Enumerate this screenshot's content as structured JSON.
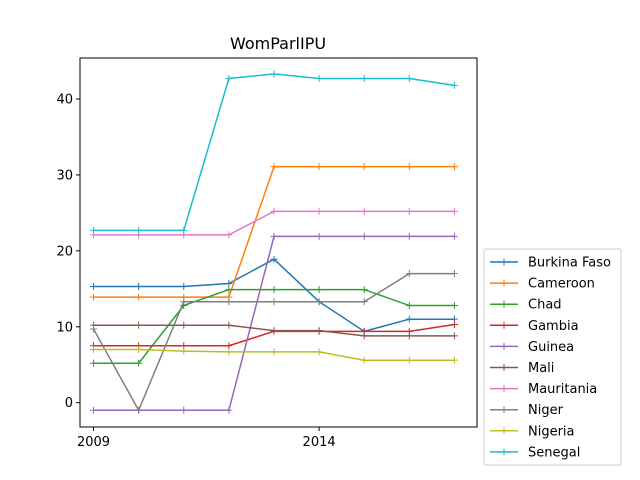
{
  "chart_data": {
    "type": "line",
    "title": "WomParlIPU",
    "xlabel": "",
    "ylabel": "",
    "x": [
      2009,
      2010,
      2011,
      2012,
      2013,
      2014,
      2015,
      2016,
      2017
    ],
    "xticks": [
      2009,
      2014
    ],
    "yticks": [
      0,
      10,
      20,
      30,
      40
    ],
    "ylim": [
      -3.2,
      45.4
    ],
    "xlim": [
      2008.7,
      2017.5
    ],
    "grid": false,
    "legend_position": "lower right, outside plot",
    "series": [
      {
        "name": "Burkina Faso",
        "color": "#1f77b4",
        "values": [
          15.3,
          15.3,
          15.3,
          15.7,
          18.9,
          13.3,
          9.4,
          11.0,
          11.0
        ]
      },
      {
        "name": "Cameroon",
        "color": "#ff7f0e",
        "values": [
          13.9,
          13.9,
          13.9,
          13.9,
          31.1,
          31.1,
          31.1,
          31.1,
          31.1
        ]
      },
      {
        "name": "Chad",
        "color": "#2ca02c",
        "values": [
          5.2,
          5.2,
          12.8,
          14.9,
          14.9,
          14.9,
          14.9,
          12.8,
          12.8
        ]
      },
      {
        "name": "Gambia",
        "color": "#d62728",
        "values": [
          7.5,
          7.5,
          7.5,
          7.5,
          9.4,
          9.4,
          9.4,
          9.4,
          10.3
        ]
      },
      {
        "name": "Guinea",
        "color": "#9467bd",
        "values": [
          -1.0,
          -1.0,
          -1.0,
          -1.0,
          21.9,
          21.9,
          21.9,
          21.9,
          21.9
        ]
      },
      {
        "name": "Mali",
        "color": "#8c564b",
        "values": [
          10.2,
          10.2,
          10.2,
          10.2,
          9.5,
          9.5,
          8.8,
          8.8,
          8.8
        ]
      },
      {
        "name": "Mauritania",
        "color": "#e377c2",
        "values": [
          22.1,
          22.1,
          22.1,
          22.1,
          25.2,
          25.2,
          25.2,
          25.2,
          25.2
        ]
      },
      {
        "name": "Niger",
        "color": "#7f7f7f",
        "values": [
          9.7,
          -1.0,
          13.3,
          13.3,
          13.3,
          13.3,
          13.3,
          17.0,
          17.0
        ]
      },
      {
        "name": "Nigeria",
        "color": "#bcbd22",
        "values": [
          7.0,
          7.0,
          6.8,
          6.7,
          6.7,
          6.7,
          5.6,
          5.6,
          5.6
        ]
      },
      {
        "name": "Senegal",
        "color": "#17becf",
        "values": [
          22.7,
          22.7,
          22.7,
          42.7,
          43.3,
          42.7,
          42.7,
          42.7,
          41.8
        ]
      }
    ]
  }
}
